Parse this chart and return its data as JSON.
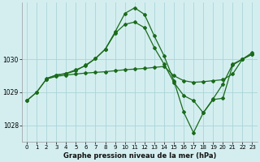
{
  "title": "Graphe pression niveau de la mer (hPa)",
  "bg_color": "#d4eef0",
  "grid_color": "#aad4d8",
  "line_color": "#1a6b1a",
  "marker_color": "#1a6b1a",
  "xlim": [
    -0.5,
    23.5
  ],
  "ylim": [
    1027.5,
    1031.7
  ],
  "yticks": [
    1028,
    1029,
    1030
  ],
  "xticks": [
    0,
    1,
    2,
    3,
    4,
    5,
    6,
    7,
    8,
    9,
    10,
    11,
    12,
    13,
    14,
    15,
    16,
    17,
    18,
    19,
    20,
    21,
    22,
    23
  ],
  "series": [
    {
      "x": [
        0,
        1,
        2,
        3,
        4,
        5,
        6,
        7,
        8,
        9,
        10,
        11,
        12,
        13,
        14,
        15,
        16,
        17,
        18,
        19,
        20,
        21,
        22,
        23
      ],
      "y": [
        1028.75,
        1029.0,
        1029.4,
        1029.48,
        1029.52,
        1029.55,
        1029.58,
        1029.6,
        1029.62,
        1029.65,
        1029.68,
        1029.7,
        1029.72,
        1029.75,
        1029.78,
        1029.5,
        1029.35,
        1029.3,
        1029.32,
        1029.35,
        1029.38,
        1029.55,
        1030.0,
        1030.15
      ]
    },
    {
      "x": [
        0,
        1,
        2,
        3,
        4,
        5,
        6,
        7,
        8,
        9,
        10,
        11,
        12,
        13,
        14,
        15,
        16,
        17,
        18,
        19,
        20,
        21,
        22,
        23
      ],
      "y": [
        1028.75,
        1029.0,
        1029.4,
        1029.52,
        1029.56,
        1029.65,
        1029.82,
        1030.02,
        1030.3,
        1030.78,
        1031.05,
        1031.12,
        1030.95,
        1030.35,
        1029.85,
        1029.3,
        1028.9,
        1028.75,
        1028.38,
        1028.8,
        1029.25,
        1029.85,
        1030.0,
        1030.15
      ]
    },
    {
      "x": [
        2,
        3,
        4,
        5,
        6,
        7,
        8,
        9,
        10,
        11,
        12,
        13,
        14,
        15,
        16,
        17,
        18,
        19,
        20,
        21,
        22,
        23
      ],
      "y": [
        1029.42,
        1029.52,
        1029.57,
        1029.68,
        1029.8,
        1030.02,
        1030.3,
        1030.82,
        1031.38,
        1031.55,
        1031.35,
        1030.7,
        1030.1,
        1029.35,
        1028.4,
        1027.78,
        1028.38,
        1028.78,
        1028.82,
        1029.82,
        1030.0,
        1030.2
      ]
    }
  ]
}
